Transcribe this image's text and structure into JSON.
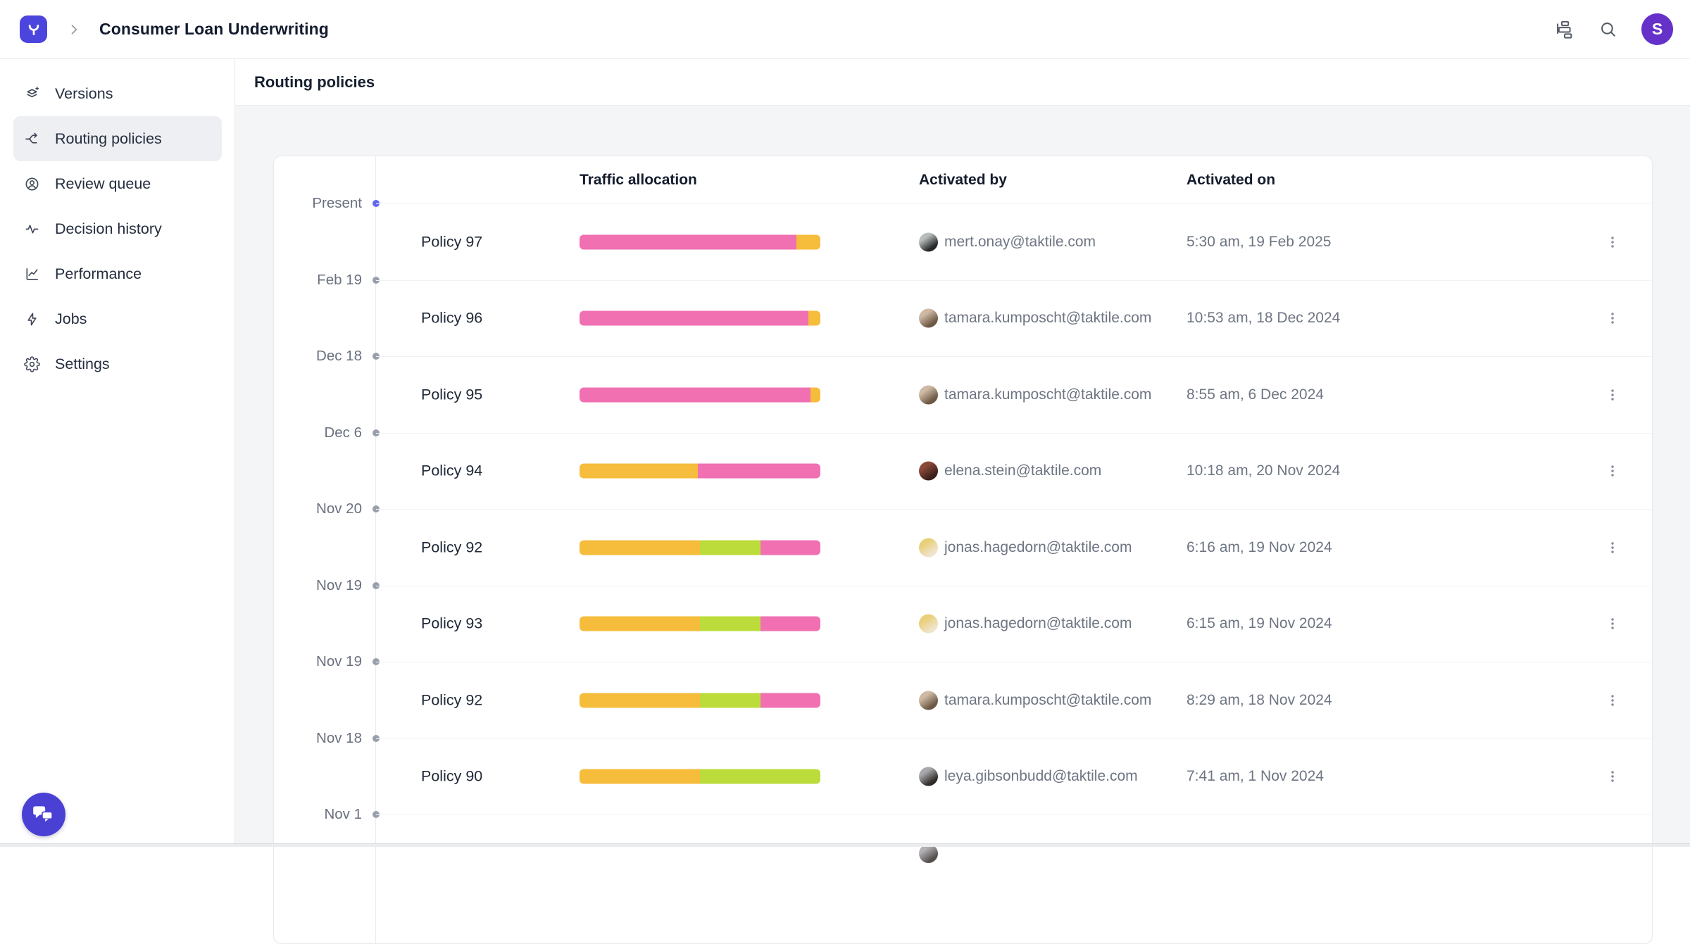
{
  "header": {
    "title": "Consumer Loan Underwriting",
    "avatar_initial": "S"
  },
  "sidebar": {
    "items": [
      {
        "label": "Versions",
        "icon": "versions-icon",
        "active": false
      },
      {
        "label": "Routing policies",
        "icon": "routing-icon",
        "active": true
      },
      {
        "label": "Review queue",
        "icon": "review-queue-icon",
        "active": false
      },
      {
        "label": "Decision history",
        "icon": "decision-history-icon",
        "active": false
      },
      {
        "label": "Performance",
        "icon": "performance-icon",
        "active": false
      },
      {
        "label": "Jobs",
        "icon": "jobs-icon",
        "active": false
      },
      {
        "label": "Settings",
        "icon": "settings-icon",
        "active": false
      }
    ]
  },
  "page": {
    "title": "Routing policies"
  },
  "timeline": {
    "labels": [
      "Present",
      "Feb 19",
      "Dec 18",
      "Dec 6",
      "Nov 20",
      "Nov 19",
      "Nov 19",
      "Nov 18",
      "Nov 1"
    ]
  },
  "table": {
    "columns": {
      "traffic": "Traffic allocation",
      "activated_by": "Activated by",
      "activated_on": "Activated on"
    },
    "rows": [
      {
        "policy": "Policy 97",
        "segments": [
          {
            "color": "pink",
            "pct": 90
          },
          {
            "color": "yellow",
            "pct": 10
          }
        ],
        "email": "mert.onay@taktile.com",
        "activated_on": "5:30 am, 19 Feb 2025",
        "avatar": [
          "#b9bdb9",
          "#23272a"
        ]
      },
      {
        "policy": "Policy 96",
        "segments": [
          {
            "color": "pink",
            "pct": 95
          },
          {
            "color": "yellow",
            "pct": 5
          }
        ],
        "email": "tamara.kumposcht@taktile.com",
        "activated_on": "10:53 am, 18 Dec 2024",
        "avatar": [
          "#cdb9a4",
          "#6d5844"
        ]
      },
      {
        "policy": "Policy 95",
        "segments": [
          {
            "color": "pink",
            "pct": 96
          },
          {
            "color": "yellow",
            "pct": 4
          }
        ],
        "email": "tamara.kumposcht@taktile.com",
        "activated_on": "8:55 am, 6 Dec 2024",
        "avatar": [
          "#cdb9a4",
          "#6d5844"
        ]
      },
      {
        "policy": "Policy 94",
        "segments": [
          {
            "color": "yellow",
            "pct": 49
          },
          {
            "color": "pink",
            "pct": 51
          }
        ],
        "email": "elena.stein@taktile.com",
        "activated_on": "10:18 am, 20 Nov 2024",
        "avatar": [
          "#8a4a3a",
          "#3a1f1a"
        ]
      },
      {
        "policy": "Policy 92",
        "segments": [
          {
            "color": "yellow",
            "pct": 50
          },
          {
            "color": "green",
            "pct": 25
          },
          {
            "color": "pink",
            "pct": 25
          }
        ],
        "email": "jonas.hagedorn@taktile.com",
        "activated_on": "6:16 am, 19 Nov 2024",
        "avatar": [
          "#e9cf79",
          "#f0e3cb"
        ]
      },
      {
        "policy": "Policy 93",
        "segments": [
          {
            "color": "yellow",
            "pct": 50
          },
          {
            "color": "green",
            "pct": 25
          },
          {
            "color": "pink",
            "pct": 25
          }
        ],
        "email": "jonas.hagedorn@taktile.com",
        "activated_on": "6:15 am, 19 Nov 2024",
        "avatar": [
          "#e9cf79",
          "#f0e3cb"
        ]
      },
      {
        "policy": "Policy 92",
        "segments": [
          {
            "color": "yellow",
            "pct": 50
          },
          {
            "color": "green",
            "pct": 25
          },
          {
            "color": "pink",
            "pct": 25
          }
        ],
        "email": "tamara.kumposcht@taktile.com",
        "activated_on": "8:29 am, 18 Nov 2024",
        "avatar": [
          "#cdb9a4",
          "#6d5844"
        ]
      },
      {
        "policy": "Policy 90",
        "segments": [
          {
            "color": "yellow",
            "pct": 50
          },
          {
            "color": "green",
            "pct": 50
          }
        ],
        "email": "leya.gibsonbudd@taktile.com",
        "activated_on": "7:41 am, 1 Nov 2024",
        "avatar": [
          "#a8a8ac",
          "#2f2a28"
        ]
      }
    ],
    "partial_row_avatar": [
      "#b3b1b5",
      "#55504e"
    ]
  },
  "colors": {
    "pink": "#F070B2",
    "yellow": "#F6BC3B",
    "green": "#BCDC3B",
    "accent": "#4C45DD",
    "present_dot": "#6366F1",
    "past_dot": "#9AA0AB"
  }
}
